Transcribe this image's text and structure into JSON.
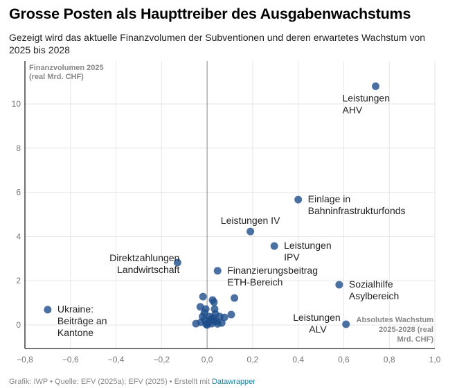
{
  "header": {
    "title": "Grosse Posten als Haupttreiber des Ausgabenwachstums",
    "subtitle": "Gezeigt wird das aktuelle Finanzvolumen der Subventionen und deren erwartetes Wachstum von 2025 bis 2028"
  },
  "footer": {
    "text": "Grafik: IWP • Quelle: EFV (2025a); EFV (2025) • Erstellt mit ",
    "link": "Datawrapper"
  },
  "chart_data": {
    "type": "scatter",
    "title": "Grosse Posten als Haupttreiber des Ausgabenwachstums",
    "xlabel": "Absolutes Wachstum 2025-2028 (real Mrd. CHF)",
    "ylabel": "Finanzvolumen 2025 (real Mrd. CHF)",
    "xlabel_lines": [
      "Absolutes Wachstum",
      "2025-2028 (real",
      "Mrd. CHF)"
    ],
    "ylabel_lines": [
      "Finanzvolumen 2025",
      "(real Mrd. CHF)"
    ],
    "xlim": [
      -0.8,
      1.0
    ],
    "ylim": [
      -1.07,
      11.5
    ],
    "xticks": [
      -0.8,
      -0.6,
      -0.4,
      -0.2,
      0.0,
      0.2,
      0.4,
      0.6,
      0.8,
      1.0
    ],
    "xtick_labels": [
      "−0,8",
      "−0,6",
      "−0,4",
      "−0,2",
      "0,0",
      "0,2",
      "0,4",
      "0,6",
      "0,8",
      "1,0"
    ],
    "yticks": [
      0,
      2,
      4,
      6,
      8,
      10
    ],
    "ytick_labels": [
      "0",
      "2",
      "4",
      "6",
      "8",
      "10"
    ],
    "grid": true,
    "color": "#1d4e89",
    "labeled_points": [
      {
        "name": "Leistungen AHV",
        "lines": [
          "Leistungen",
          "AHV"
        ],
        "x": 0.74,
        "y": 10.8,
        "anchor": "below-left"
      },
      {
        "name": "Einlage in Bahninfrastrukturfonds",
        "lines": [
          "Einlage in",
          "Bahninfrastrukturfonds"
        ],
        "x": 0.4,
        "y": 5.67,
        "anchor": "right"
      },
      {
        "name": "Leistungen IV",
        "lines": [
          "Leistungen IV"
        ],
        "x": 0.19,
        "y": 4.23,
        "anchor": "above"
      },
      {
        "name": "Leistungen IPV",
        "lines": [
          "Leistungen",
          "IPV"
        ],
        "x": 0.295,
        "y": 3.57,
        "anchor": "right"
      },
      {
        "name": "Direktzahlungen Landwirtschaft",
        "lines": [
          "Direktzahlungen",
          "Landwirtschaft"
        ],
        "x": -0.13,
        "y": 2.82,
        "anchor": "left"
      },
      {
        "name": "Finanzierungsbeitrag ETH-Bereich",
        "lines": [
          "Finanzierungsbeitrag",
          "ETH-Bereich"
        ],
        "x": 0.046,
        "y": 2.45,
        "anchor": "right"
      },
      {
        "name": "Sozialhilfe Asylbereich",
        "lines": [
          "Sozialhilfe",
          "Asylbereich"
        ],
        "x": 0.58,
        "y": 1.82,
        "anchor": "right"
      },
      {
        "name": "Ukraine: Beiträge an Kantone",
        "lines": [
          "Ukraine:",
          "Beiträge an",
          "Kantone"
        ],
        "x": -0.7,
        "y": 0.69,
        "anchor": "right"
      },
      {
        "name": "Leistungen ALV",
        "lines": [
          "Leistungen",
          "ALV"
        ],
        "x": 0.61,
        "y": 0.03,
        "anchor": "left"
      }
    ],
    "unlabeled_points": [
      {
        "x": -0.018,
        "y": 1.28
      },
      {
        "x": 0.024,
        "y": 1.13
      },
      {
        "x": 0.03,
        "y": 1.03
      },
      {
        "x": 0.12,
        "y": 1.22
      },
      {
        "x": -0.03,
        "y": 0.82
      },
      {
        "x": -0.006,
        "y": 0.72
      },
      {
        "x": 0.033,
        "y": 0.72
      },
      {
        "x": 0.036,
        "y": 0.5
      },
      {
        "x": 0.106,
        "y": 0.47
      },
      {
        "x": 0.055,
        "y": 0.38
      },
      {
        "x": 0.076,
        "y": 0.34
      },
      {
        "x": -0.049,
        "y": 0.06
      },
      {
        "x": 0.064,
        "y": 0.09
      },
      {
        "x": -0.02,
        "y": 0.38
      },
      {
        "x": -0.01,
        "y": 0.22
      },
      {
        "x": 0.003,
        "y": 0.09
      },
      {
        "x": 0.015,
        "y": 0.25
      },
      {
        "x": 0.03,
        "y": 0.18
      },
      {
        "x": 0.042,
        "y": 0.16
      },
      {
        "x": 0.009,
        "y": 0.38
      },
      {
        "x": 0.02,
        "y": 0.06
      },
      {
        "x": -0.004,
        "y": 0.03
      },
      {
        "x": -0.027,
        "y": 0.12
      },
      {
        "x": 0.012,
        "y": 0.15
      },
      {
        "x": 0.025,
        "y": 0.33
      },
      {
        "x": 0.046,
        "y": 0.05
      },
      {
        "x": -0.012,
        "y": 0.55
      },
      {
        "x": 0.0,
        "y": 0.0
      }
    ]
  }
}
